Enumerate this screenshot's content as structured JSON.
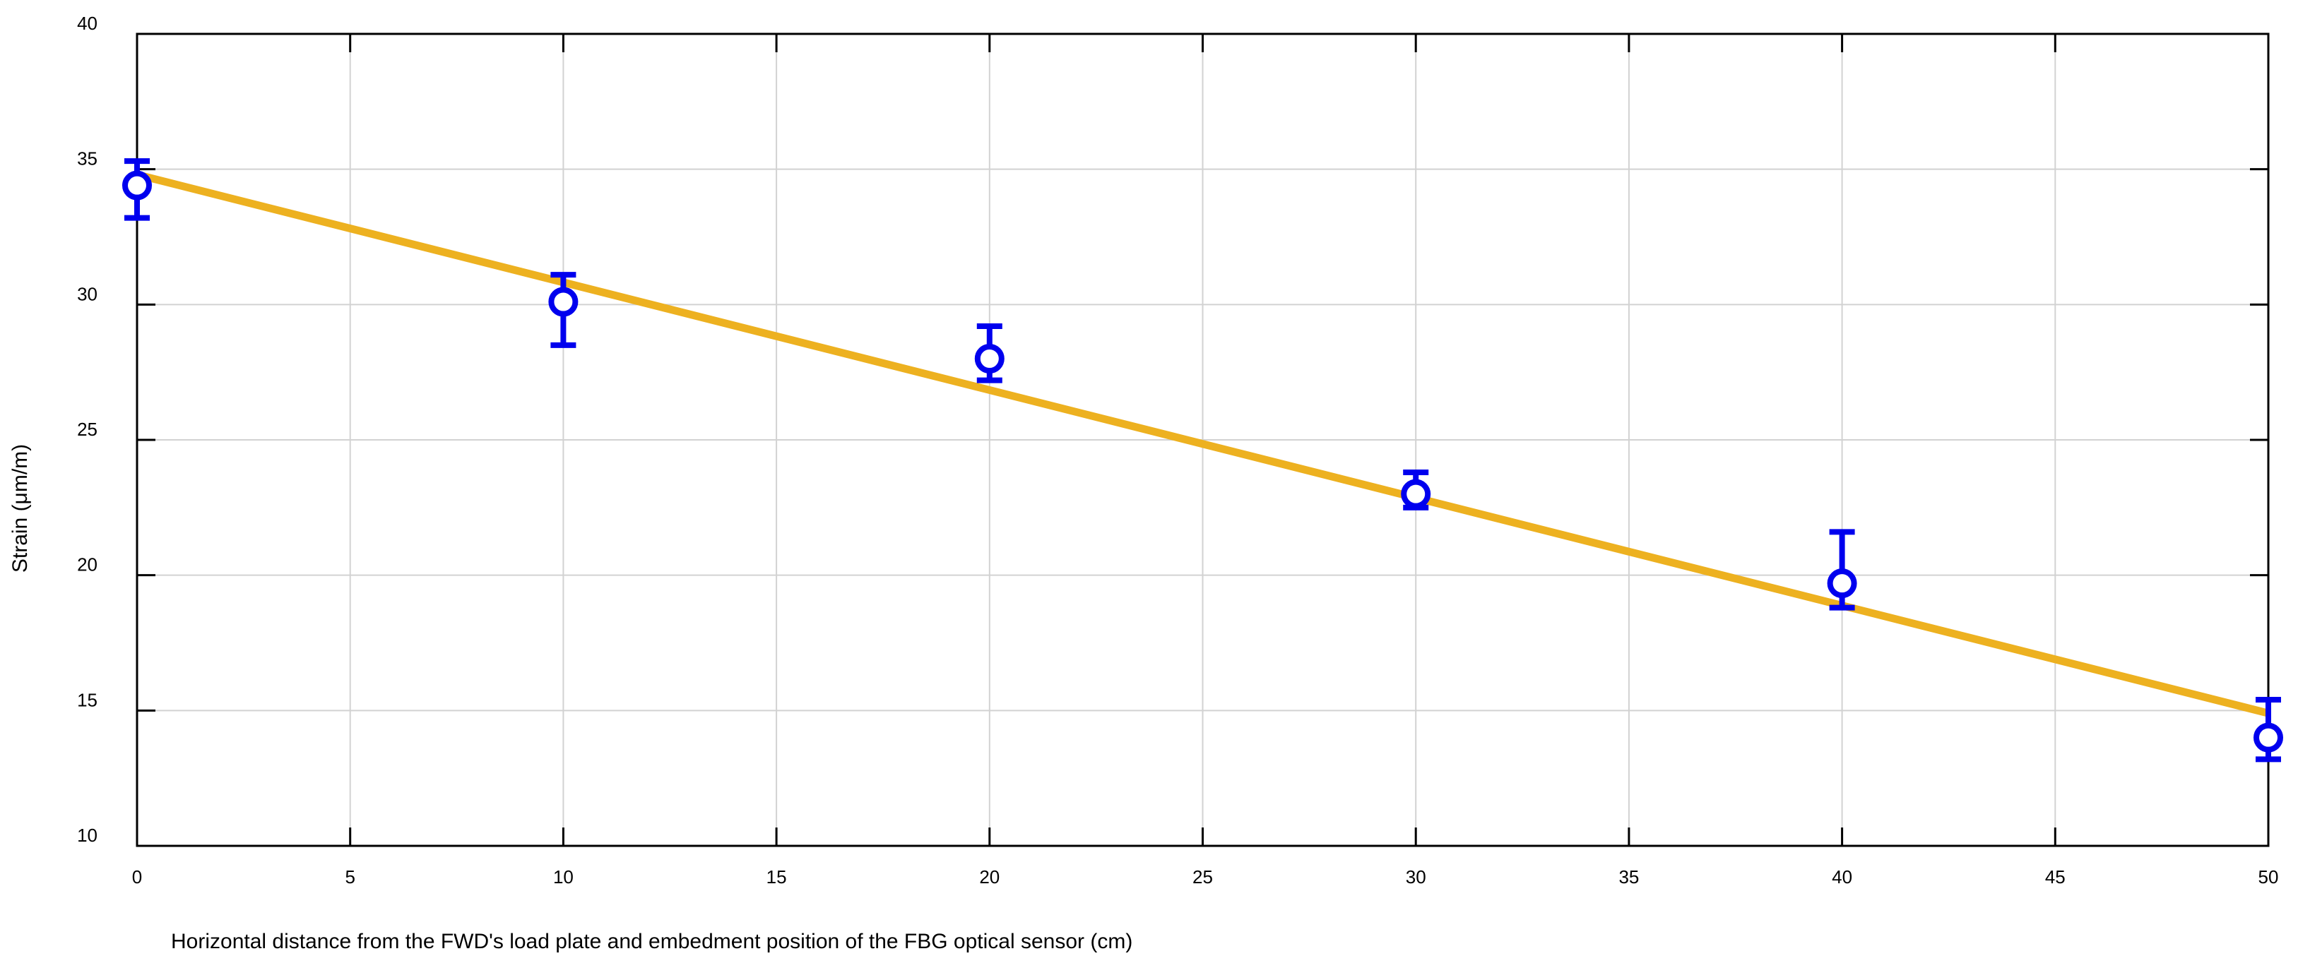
{
  "chart_data": {
    "type": "scatter",
    "title": "",
    "xlabel": "Horizontal distance from the FWD's load plate and embedment position of the FBG optical sensor (cm)",
    "ylabel": "Strain (μm/m)",
    "xlim": [
      0,
      50
    ],
    "ylim": [
      10,
      40
    ],
    "xticks": [
      0,
      5,
      10,
      15,
      20,
      25,
      30,
      35,
      40,
      45,
      50
    ],
    "yticks": [
      10,
      15,
      20,
      25,
      30,
      35,
      40
    ],
    "grid": true,
    "legend": "none",
    "series": [
      {
        "kind": "points-with-error-bars",
        "color": "#0000ee",
        "points": [
          {
            "x": 0,
            "y": 34.4,
            "err_low": 33.2,
            "err_high": 35.3
          },
          {
            "x": 10,
            "y": 30.1,
            "err_low": 28.5,
            "err_high": 31.1
          },
          {
            "x": 20,
            "y": 28.0,
            "err_low": 27.2,
            "err_high": 29.2
          },
          {
            "x": 30,
            "y": 23.0,
            "err_low": 22.5,
            "err_high": 23.8
          },
          {
            "x": 40,
            "y": 19.7,
            "err_low": 18.8,
            "err_high": 21.6
          },
          {
            "x": 50,
            "y": 14.0,
            "err_low": 13.2,
            "err_high": 15.4
          }
        ]
      },
      {
        "kind": "fit-line",
        "color": "#edb120",
        "x": [
          0,
          50
        ],
        "y": [
          34.8,
          14.9
        ]
      }
    ]
  }
}
